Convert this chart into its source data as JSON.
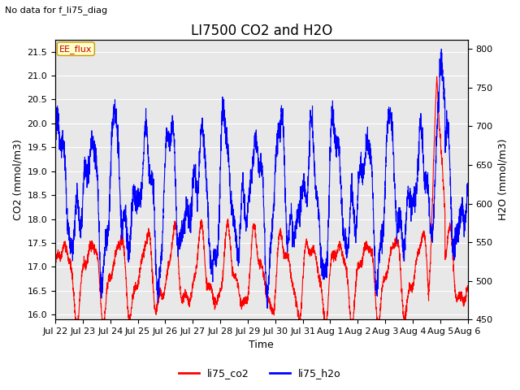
{
  "title": "LI7500 CO2 and H2O",
  "subtitle": "No data for f_li75_diag",
  "xlabel": "Time",
  "ylabel_left": "CO2 (mmol/m3)",
  "ylabel_right": "H2O (mmol/m3)",
  "ylim_left": [
    15.9,
    21.75
  ],
  "ylim_right": [
    450,
    812
  ],
  "yticks_left": [
    16.0,
    16.5,
    17.0,
    17.5,
    18.0,
    18.5,
    19.0,
    19.5,
    20.0,
    20.5,
    21.0,
    21.5
  ],
  "yticks_right": [
    450,
    500,
    550,
    600,
    650,
    700,
    750,
    800
  ],
  "xtick_labels": [
    "Jul 22",
    "Jul 23",
    "Jul 24",
    "Jul 25",
    "Jul 26",
    "Jul 27",
    "Jul 28",
    "Jul 29",
    "Jul 30",
    "Jul 31",
    "Aug 1",
    "Aug 2",
    "Aug 3",
    "Aug 4",
    "Aug 5",
    "Aug 6"
  ],
  "legend_labels": [
    "li75_co2",
    "li75_h2o"
  ],
  "legend_colors": [
    "red",
    "blue"
  ],
  "ee_flux_label": "EE_flux",
  "bg_color": "#ffffff",
  "plot_bg_color": "#e8e8e8",
  "grid_color": "#ffffff",
  "line_color_co2": "red",
  "line_color_h2o": "blue",
  "title_fontsize": 12,
  "axis_fontsize": 9,
  "tick_fontsize": 8
}
